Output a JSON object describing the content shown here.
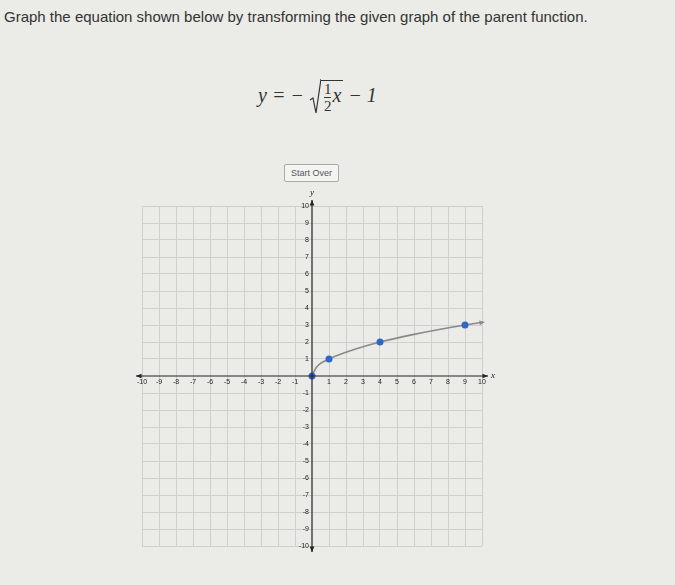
{
  "instruction": "Graph the equation shown below by transforming the given graph of the parent function.",
  "equation": {
    "left": "y",
    "operator": "= −",
    "numerator": "1",
    "denominator": "2",
    "variable": "x",
    "tail": "− 1"
  },
  "button": "Start Over",
  "chart_data": {
    "type": "line",
    "x_label": "x",
    "y_label": "y",
    "series": [
      {
        "type": "line",
        "color": "#8a8a8a",
        "marker": "none",
        "x": [
          0,
          0.25,
          1,
          2,
          4,
          6,
          9,
          10
        ],
        "values": [
          0,
          0.5,
          1,
          1.4,
          2,
          2.45,
          3,
          3.15
        ]
      },
      {
        "type": "scatter",
        "color": "#2f66c8",
        "marker": "circle",
        "x": [
          0,
          1,
          4,
          9
        ],
        "values": [
          0,
          1,
          2,
          3
        ]
      }
    ],
    "xlim": [
      -10,
      10
    ],
    "ylim": [
      -10,
      10
    ],
    "xticks": [
      -10,
      -9,
      -8,
      -7,
      -6,
      -5,
      -4,
      -3,
      -2,
      -1,
      1,
      2,
      3,
      4,
      5,
      6,
      7,
      8,
      9,
      10
    ],
    "yticks": [
      -10,
      -9,
      -8,
      -7,
      -6,
      -5,
      -4,
      -3,
      -2,
      -1,
      1,
      2,
      3,
      4,
      5,
      6,
      7,
      8,
      9,
      10
    ],
    "grid": true
  }
}
